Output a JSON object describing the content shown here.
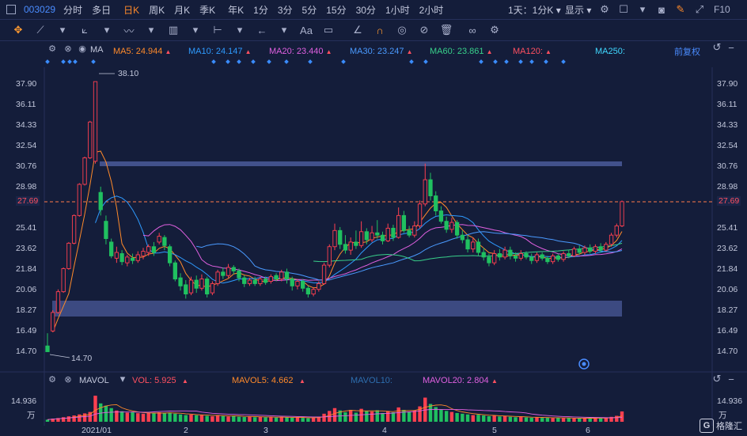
{
  "toolbar": {
    "code": "003029",
    "periods": [
      "分时",
      "多日",
      "日K",
      "周K",
      "月K",
      "季K",
      "年K",
      "1分",
      "3分",
      "5分",
      "15分",
      "30分",
      "1小时",
      "2小时"
    ],
    "active_period": "日K",
    "interval_select": "1天：1分K",
    "display_select": "显示",
    "fio": "F10"
  },
  "ma": {
    "label": "MA",
    "items": [
      {
        "name": "MA5",
        "value": "24.944",
        "color": "#ff8a2a"
      },
      {
        "name": "MA10",
        "value": "24.147",
        "color": "#2e9bff"
      },
      {
        "name": "MA20",
        "value": "23.440",
        "color": "#e060e0"
      },
      {
        "name": "MA30",
        "value": "23.247",
        "color": "#4a9aff"
      },
      {
        "name": "MA60",
        "value": "23.861",
        "color": "#38d08a"
      },
      {
        "name": "MA120",
        "value": "",
        "color": "#ff5060"
      },
      {
        "name": "MA250",
        "value": "",
        "color": "#40d8ff"
      }
    ],
    "adjust": "前复权"
  },
  "price_axis": [
    "37.90",
    "36.11",
    "34.33",
    "32.54",
    "30.76",
    "28.98",
    "27.69",
    "25.41",
    "23.62",
    "21.84",
    "20.06",
    "18.27",
    "16.49",
    "14.70"
  ],
  "current_price": "27.69",
  "annotations": {
    "high": "38.10",
    "low": "14.70"
  },
  "volume": {
    "label": "MAVOL",
    "vol": "VOL: 5.925",
    "mavol5": "MAVOL5: 4.662",
    "mavol10": "MAVOL10:",
    "mavol20": "MAVOL20: 2.804",
    "axis_top": "14.936",
    "unit": "万"
  },
  "x_axis": [
    "2021/01",
    "2",
    "3",
    "4",
    "5",
    "6"
  ],
  "logo": "格隆汇",
  "chart_data": {
    "type": "candlestick",
    "price_range": [
      13.5,
      39.0
    ],
    "candles": [
      [
        15.2,
        14.7,
        16.3,
        14.7
      ],
      [
        16.5,
        18.1,
        18.3,
        16.4
      ],
      [
        18.1,
        19.9,
        20.1,
        18.0
      ],
      [
        19.9,
        21.9,
        22.0,
        19.8
      ],
      [
        21.9,
        24.1,
        24.2,
        21.8
      ],
      [
        24.1,
        26.5,
        26.6,
        24.0
      ],
      [
        26.5,
        29.2,
        29.3,
        26.4
      ],
      [
        29.2,
        31.5,
        31.6,
        29.1
      ],
      [
        31.5,
        34.6,
        34.7,
        31.4
      ],
      [
        31.2,
        38.1,
        38.1,
        31.0
      ],
      [
        28.5,
        27.0,
        29.0,
        26.5
      ],
      [
        26.0,
        24.5,
        26.5,
        24.0
      ],
      [
        24.2,
        23.0,
        24.5,
        22.8
      ],
      [
        22.8,
        23.3,
        23.8,
        22.4
      ],
      [
        23.2,
        22.5,
        23.5,
        22.2
      ],
      [
        22.4,
        22.9,
        23.1,
        22.1
      ],
      [
        22.8,
        22.6,
        23.2,
        22.3
      ],
      [
        22.6,
        23.1,
        23.4,
        22.4
      ],
      [
        23.0,
        23.4,
        23.7,
        22.7
      ],
      [
        23.3,
        23.8,
        24.0,
        23.0
      ],
      [
        23.8,
        23.3,
        24.2,
        23.0
      ],
      [
        24.2,
        24.7,
        25.0,
        24.0
      ],
      [
        24.6,
        23.9,
        24.8,
        23.5
      ],
      [
        23.8,
        22.4,
        24.0,
        22.1
      ],
      [
        22.4,
        21.0,
        22.6,
        20.8
      ],
      [
        21.1,
        20.4,
        21.5,
        20.0
      ],
      [
        20.5,
        19.7,
        20.9,
        19.3
      ],
      [
        19.8,
        20.9,
        21.2,
        19.6
      ],
      [
        20.9,
        20.2,
        21.3,
        19.8
      ],
      [
        20.2,
        21.0,
        21.4,
        20.0
      ],
      [
        21.0,
        19.7,
        21.2,
        19.4
      ],
      [
        19.8,
        20.6,
        20.8,
        19.6
      ],
      [
        20.6,
        21.6,
        21.8,
        20.4
      ],
      [
        21.6,
        21.3,
        22.0,
        21.0
      ],
      [
        21.3,
        22.0,
        22.3,
        21.1
      ],
      [
        22.0,
        21.7,
        22.2,
        21.4
      ],
      [
        21.7,
        21.1,
        21.9,
        20.8
      ],
      [
        21.1,
        20.6,
        21.3,
        20.3
      ],
      [
        20.6,
        20.9,
        21.1,
        20.4
      ],
      [
        20.9,
        20.6,
        21.2,
        20.4
      ],
      [
        20.6,
        21.0,
        21.2,
        20.4
      ],
      [
        21.0,
        20.7,
        21.2,
        20.5
      ],
      [
        20.8,
        21.2,
        21.4,
        20.6
      ],
      [
        21.3,
        21.0,
        21.5,
        20.8
      ],
      [
        21.0,
        21.6,
        21.8,
        20.8
      ],
      [
        21.6,
        21.0,
        21.9,
        20.6
      ],
      [
        21.0,
        20.4,
        21.2,
        20.0
      ],
      [
        20.4,
        20.8,
        21.0,
        20.1
      ],
      [
        20.8,
        20.2,
        21.0,
        19.9
      ],
      [
        20.2,
        19.7,
        20.4,
        19.4
      ],
      [
        19.7,
        20.1,
        20.3,
        19.5
      ],
      [
        20.1,
        20.6,
        20.8,
        19.9
      ],
      [
        20.6,
        22.2,
        22.4,
        20.5
      ],
      [
        22.2,
        23.8,
        24.0,
        22.0
      ],
      [
        23.8,
        25.2,
        25.8,
        23.5
      ],
      [
        25.2,
        24.0,
        25.5,
        23.6
      ],
      [
        24.0,
        23.5,
        24.8,
        23.2
      ],
      [
        23.5,
        24.2,
        24.6,
        23.1
      ],
      [
        24.2,
        23.9,
        25.2,
        23.6
      ],
      [
        23.9,
        25.1,
        26.0,
        23.7
      ],
      [
        25.1,
        24.4,
        25.4,
        24.0
      ],
      [
        24.4,
        25.0,
        25.6,
        24.2
      ],
      [
        25.0,
        24.8,
        26.1,
        24.5
      ],
      [
        24.8,
        24.3,
        25.1,
        24.0
      ],
      [
        24.3,
        25.4,
        25.8,
        24.2
      ],
      [
        25.4,
        24.6,
        25.7,
        24.3
      ],
      [
        24.6,
        26.5,
        27.2,
        24.5
      ],
      [
        26.5,
        25.2,
        26.9,
        25.0
      ],
      [
        25.2,
        24.8,
        25.6,
        24.6
      ],
      [
        24.8,
        25.6,
        26.0,
        24.6
      ],
      [
        25.6,
        27.5,
        27.8,
        25.4
      ],
      [
        27.5,
        29.6,
        31.0,
        27.3
      ],
      [
        29.6,
        28.2,
        30.2,
        27.8
      ],
      [
        28.2,
        26.9,
        28.6,
        26.5
      ],
      [
        26.9,
        26.0,
        27.3,
        25.8
      ],
      [
        26.0,
        25.3,
        26.4,
        25.0
      ],
      [
        25.3,
        25.9,
        26.3,
        25.0
      ],
      [
        25.9,
        24.8,
        26.1,
        24.5
      ],
      [
        24.8,
        24.4,
        25.2,
        24.1
      ],
      [
        24.4,
        23.6,
        24.8,
        23.3
      ],
      [
        23.6,
        24.2,
        24.6,
        23.3
      ],
      [
        24.2,
        23.3,
        24.5,
        23.0
      ],
      [
        23.3,
        22.9,
        23.7,
        22.6
      ],
      [
        22.9,
        22.4,
        23.2,
        22.1
      ],
      [
        22.4,
        23.2,
        23.5,
        22.2
      ],
      [
        23.2,
        22.9,
        23.6,
        22.6
      ],
      [
        22.9,
        23.5,
        23.8,
        22.7
      ],
      [
        23.5,
        23.0,
        23.8,
        22.7
      ],
      [
        23.0,
        22.8,
        23.3,
        22.5
      ],
      [
        22.8,
        23.2,
        23.5,
        22.6
      ],
      [
        23.2,
        22.9,
        23.4,
        22.7
      ],
      [
        22.9,
        22.6,
        23.2,
        22.3
      ],
      [
        22.6,
        23.1,
        23.3,
        22.4
      ],
      [
        23.1,
        22.8,
        23.3,
        22.6
      ],
      [
        22.8,
        22.5,
        23.0,
        22.3
      ],
      [
        22.5,
        23.0,
        23.2,
        22.3
      ],
      [
        23.0,
        22.7,
        23.2,
        22.5
      ],
      [
        22.7,
        23.2,
        23.4,
        22.5
      ],
      [
        23.2,
        23.0,
        23.5,
        22.8
      ],
      [
        23.0,
        23.6,
        23.8,
        22.9
      ],
      [
        23.6,
        23.3,
        23.9,
        23.1
      ],
      [
        23.3,
        23.7,
        23.9,
        23.1
      ],
      [
        23.7,
        23.4,
        24.0,
        23.2
      ],
      [
        23.4,
        23.8,
        24.0,
        23.2
      ],
      [
        23.8,
        23.5,
        24.1,
        23.3
      ],
      [
        23.5,
        24.0,
        24.2,
        23.4
      ],
      [
        24.0,
        24.8,
        25.0,
        23.8
      ],
      [
        24.8,
        25.6,
        25.8,
        24.6
      ],
      [
        25.6,
        27.7,
        27.8,
        25.5
      ]
    ],
    "volumes": [
      1.2,
      1.8,
      2.1,
      2.6,
      3.1,
      3.6,
      4.2,
      4.8,
      5.6,
      14.9,
      10.5,
      9.2,
      7.8,
      6.4,
      6.0,
      5.2,
      5.6,
      4.9,
      4.6,
      5.1,
      4.8,
      5.4,
      4.9,
      5.3,
      4.6,
      4.2,
      3.8,
      4.1,
      3.7,
      4.0,
      3.4,
      3.1,
      3.8,
      3.3,
      3.0,
      3.5,
      2.9,
      2.7,
      3.1,
      2.6,
      2.9,
      2.5,
      2.7,
      2.4,
      2.8,
      2.5,
      2.3,
      2.6,
      2.2,
      2.0,
      2.4,
      2.8,
      4.6,
      6.2,
      7.8,
      6.5,
      5.4,
      6.8,
      5.2,
      7.4,
      6.1,
      5.8,
      6.6,
      5.0,
      6.2,
      5.4,
      8.2,
      6.8,
      5.6,
      6.4,
      8.8,
      13.8,
      10.2,
      8.4,
      7.0,
      6.2,
      5.6,
      5.0,
      4.6,
      4.2,
      3.8,
      4.0,
      3.6,
      3.2,
      3.5,
      3.0,
      3.3,
      2.8,
      2.6,
      2.9,
      2.5,
      2.3,
      2.6,
      2.2,
      2.4,
      2.1,
      2.3,
      2.0,
      2.2,
      1.9,
      2.1,
      2.0,
      2.2,
      2.0,
      2.3,
      2.1,
      2.8,
      3.4,
      5.9
    ],
    "volume_range": [
      0,
      14.936
    ]
  }
}
